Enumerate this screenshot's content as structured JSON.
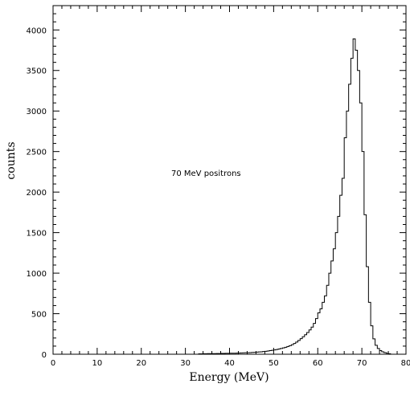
{
  "chart_data": {
    "type": "histogram",
    "title": "",
    "xlabel": "Energy (MeV)",
    "ylabel": "counts",
    "annotation": "70 MeV positrons",
    "xlim": [
      0,
      80
    ],
    "ylim": [
      0,
      4300
    ],
    "x_ticks": [
      0,
      10,
      20,
      30,
      40,
      50,
      60,
      70,
      80
    ],
    "y_ticks": [
      0,
      500,
      1000,
      1500,
      2000,
      2500,
      3000,
      3500,
      4000
    ],
    "grid": false,
    "bin_width": 0.5,
    "bins": [
      {
        "x": 33.0,
        "count": 5
      },
      {
        "x": 33.5,
        "count": 5
      },
      {
        "x": 34.0,
        "count": 6
      },
      {
        "x": 34.5,
        "count": 6
      },
      {
        "x": 35.0,
        "count": 7
      },
      {
        "x": 35.5,
        "count": 7
      },
      {
        "x": 36.0,
        "count": 8
      },
      {
        "x": 36.5,
        "count": 8
      },
      {
        "x": 37.0,
        "count": 9
      },
      {
        "x": 37.5,
        "count": 9
      },
      {
        "x": 38.0,
        "count": 10
      },
      {
        "x": 38.5,
        "count": 10
      },
      {
        "x": 39.0,
        "count": 11
      },
      {
        "x": 39.5,
        "count": 11
      },
      {
        "x": 40.0,
        "count": 12
      },
      {
        "x": 40.5,
        "count": 12
      },
      {
        "x": 41.0,
        "count": 13
      },
      {
        "x": 41.5,
        "count": 14
      },
      {
        "x": 42.0,
        "count": 15
      },
      {
        "x": 42.5,
        "count": 16
      },
      {
        "x": 43.0,
        "count": 17
      },
      {
        "x": 43.5,
        "count": 18
      },
      {
        "x": 44.0,
        "count": 19
      },
      {
        "x": 44.5,
        "count": 20
      },
      {
        "x": 45.0,
        "count": 22
      },
      {
        "x": 45.5,
        "count": 24
      },
      {
        "x": 46.0,
        "count": 26
      },
      {
        "x": 46.5,
        "count": 28
      },
      {
        "x": 47.0,
        "count": 30
      },
      {
        "x": 47.5,
        "count": 33
      },
      {
        "x": 48.0,
        "count": 36
      },
      {
        "x": 48.5,
        "count": 40
      },
      {
        "x": 49.0,
        "count": 44
      },
      {
        "x": 49.5,
        "count": 48
      },
      {
        "x": 50.0,
        "count": 53
      },
      {
        "x": 50.5,
        "count": 58
      },
      {
        "x": 51.0,
        "count": 64
      },
      {
        "x": 51.5,
        "count": 70
      },
      {
        "x": 52.0,
        "count": 78
      },
      {
        "x": 52.5,
        "count": 86
      },
      {
        "x": 53.0,
        "count": 95
      },
      {
        "x": 53.5,
        "count": 105
      },
      {
        "x": 54.0,
        "count": 118
      },
      {
        "x": 54.5,
        "count": 132
      },
      {
        "x": 55.0,
        "count": 150
      },
      {
        "x": 55.5,
        "count": 170
      },
      {
        "x": 56.0,
        "count": 192
      },
      {
        "x": 56.5,
        "count": 215
      },
      {
        "x": 57.0,
        "count": 240
      },
      {
        "x": 57.5,
        "count": 268
      },
      {
        "x": 58.0,
        "count": 300
      },
      {
        "x": 58.5,
        "count": 335
      },
      {
        "x": 59.0,
        "count": 380
      },
      {
        "x": 59.5,
        "count": 440
      },
      {
        "x": 60.0,
        "count": 510
      },
      {
        "x": 60.5,
        "count": 560
      },
      {
        "x": 61.0,
        "count": 640
      },
      {
        "x": 61.5,
        "count": 720
      },
      {
        "x": 62.0,
        "count": 850
      },
      {
        "x": 62.5,
        "count": 1000
      },
      {
        "x": 63.0,
        "count": 1150
      },
      {
        "x": 63.5,
        "count": 1300
      },
      {
        "x": 64.0,
        "count": 1500
      },
      {
        "x": 64.5,
        "count": 1700
      },
      {
        "x": 65.0,
        "count": 1960
      },
      {
        "x": 65.5,
        "count": 2170
      },
      {
        "x": 66.0,
        "count": 2670
      },
      {
        "x": 66.5,
        "count": 3000
      },
      {
        "x": 67.0,
        "count": 3330
      },
      {
        "x": 67.5,
        "count": 3650
      },
      {
        "x": 68.0,
        "count": 3890
      },
      {
        "x": 68.5,
        "count": 3750
      },
      {
        "x": 69.0,
        "count": 3500
      },
      {
        "x": 69.5,
        "count": 3100
      },
      {
        "x": 70.0,
        "count": 2500
      },
      {
        "x": 70.5,
        "count": 1720
      },
      {
        "x": 71.0,
        "count": 1080
      },
      {
        "x": 71.5,
        "count": 640
      },
      {
        "x": 72.0,
        "count": 350
      },
      {
        "x": 72.5,
        "count": 190
      },
      {
        "x": 73.0,
        "count": 110
      },
      {
        "x": 73.5,
        "count": 70
      },
      {
        "x": 74.0,
        "count": 45
      },
      {
        "x": 74.5,
        "count": 30
      },
      {
        "x": 75.0,
        "count": 20
      },
      {
        "x": 75.5,
        "count": 12
      },
      {
        "x": 76.0,
        "count": 6
      }
    ]
  }
}
